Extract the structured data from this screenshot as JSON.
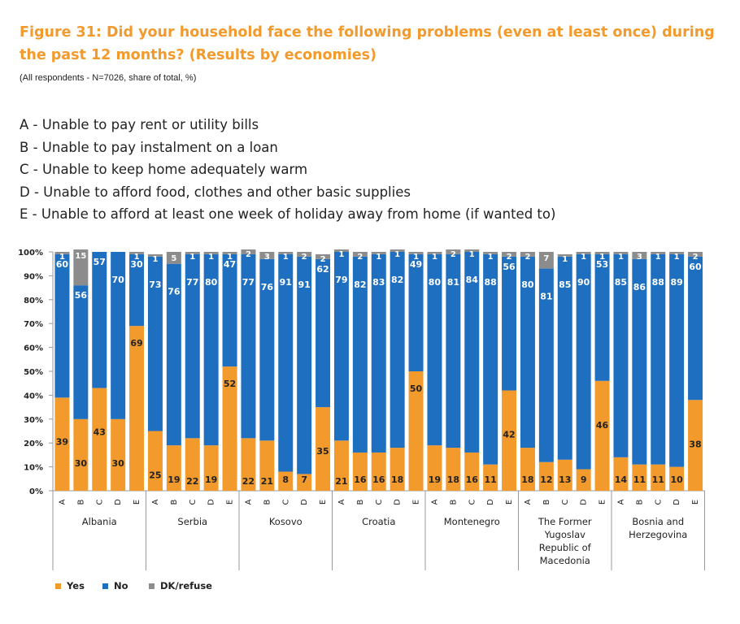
{
  "header": {
    "title": "Figure 31: Did your household face the following problems (even at least once) during the past 12 months? (Results by economies)",
    "subtitle": "(All respondents - N=7026, share of total, %)"
  },
  "definitions": [
    "A - Unable to pay rent or utility bills",
    "B - Unable to pay instalment on a loan",
    "C - Unable to keep home adequately warm",
    "D - Unable to afford food, clothes and other basic supplies",
    "E - Unable to afford at least one week of holiday away from home (if wanted to)"
  ],
  "colors": {
    "yes": "#f39a2d",
    "no": "#1f6fc1",
    "dk": "#8c8c8c",
    "label_text": "#ffffff"
  },
  "chart_data": {
    "type": "bar",
    "stacked": true,
    "ylim": [
      0,
      100
    ],
    "y_ticks": [
      "0%",
      "10%",
      "20%",
      "30%",
      "40%",
      "50%",
      "60%",
      "70%",
      "80%",
      "90%",
      "100%"
    ],
    "categories": [
      "A",
      "B",
      "C",
      "D",
      "E"
    ],
    "groups": [
      {
        "name": "Albania",
        "name_lines": [
          "Albania"
        ],
        "yes": [
          39,
          30,
          43,
          30,
          69
        ],
        "no": [
          60,
          56,
          57,
          70,
          30
        ],
        "dk": [
          1,
          15,
          0,
          0,
          1
        ]
      },
      {
        "name": "Serbia",
        "name_lines": [
          "Serbia"
        ],
        "yes": [
          25,
          19,
          22,
          19,
          52
        ],
        "no": [
          73,
          76,
          77,
          80,
          47
        ],
        "dk": [
          1,
          5,
          1,
          1,
          1
        ]
      },
      {
        "name": "Kosovo",
        "name_lines": [
          "Kosovo"
        ],
        "yes": [
          22,
          21,
          8,
          7,
          35
        ],
        "no": [
          77,
          76,
          91,
          91,
          62
        ],
        "dk": [
          2,
          3,
          1,
          2,
          2
        ]
      },
      {
        "name": "Croatia",
        "name_lines": [
          "Croatia"
        ],
        "yes": [
          21,
          16,
          16,
          18,
          50
        ],
        "no": [
          79,
          82,
          83,
          82,
          49
        ],
        "dk": [
          1,
          2,
          1,
          1,
          1
        ]
      },
      {
        "name": "Montenegro",
        "name_lines": [
          "Montenegro"
        ],
        "yes": [
          19,
          18,
          16,
          11,
          42
        ],
        "no": [
          80,
          81,
          84,
          88,
          56
        ],
        "dk": [
          1,
          2,
          1,
          1,
          2
        ]
      },
      {
        "name": "The Former Yugoslav Republic of Macedonia",
        "name_lines": [
          "The Former",
          "Yugoslav",
          "Republic of",
          "Macedonia"
        ],
        "yes": [
          18,
          12,
          13,
          9,
          46
        ],
        "no": [
          80,
          81,
          85,
          90,
          53
        ],
        "dk": [
          2,
          7,
          1,
          1,
          1
        ]
      },
      {
        "name": "Bosnia and Herzegovina",
        "name_lines": [
          "Bosnia and",
          "Herzegovina"
        ],
        "yes": [
          14,
          11,
          11,
          10,
          38
        ],
        "no": [
          85,
          86,
          88,
          89,
          60
        ],
        "dk": [
          1,
          3,
          1,
          1,
          2
        ]
      }
    ],
    "series": [
      {
        "key": "yes",
        "name": "Yes"
      },
      {
        "key": "no",
        "name": "No"
      },
      {
        "key": "dk",
        "name": "DK/refuse"
      }
    ]
  }
}
